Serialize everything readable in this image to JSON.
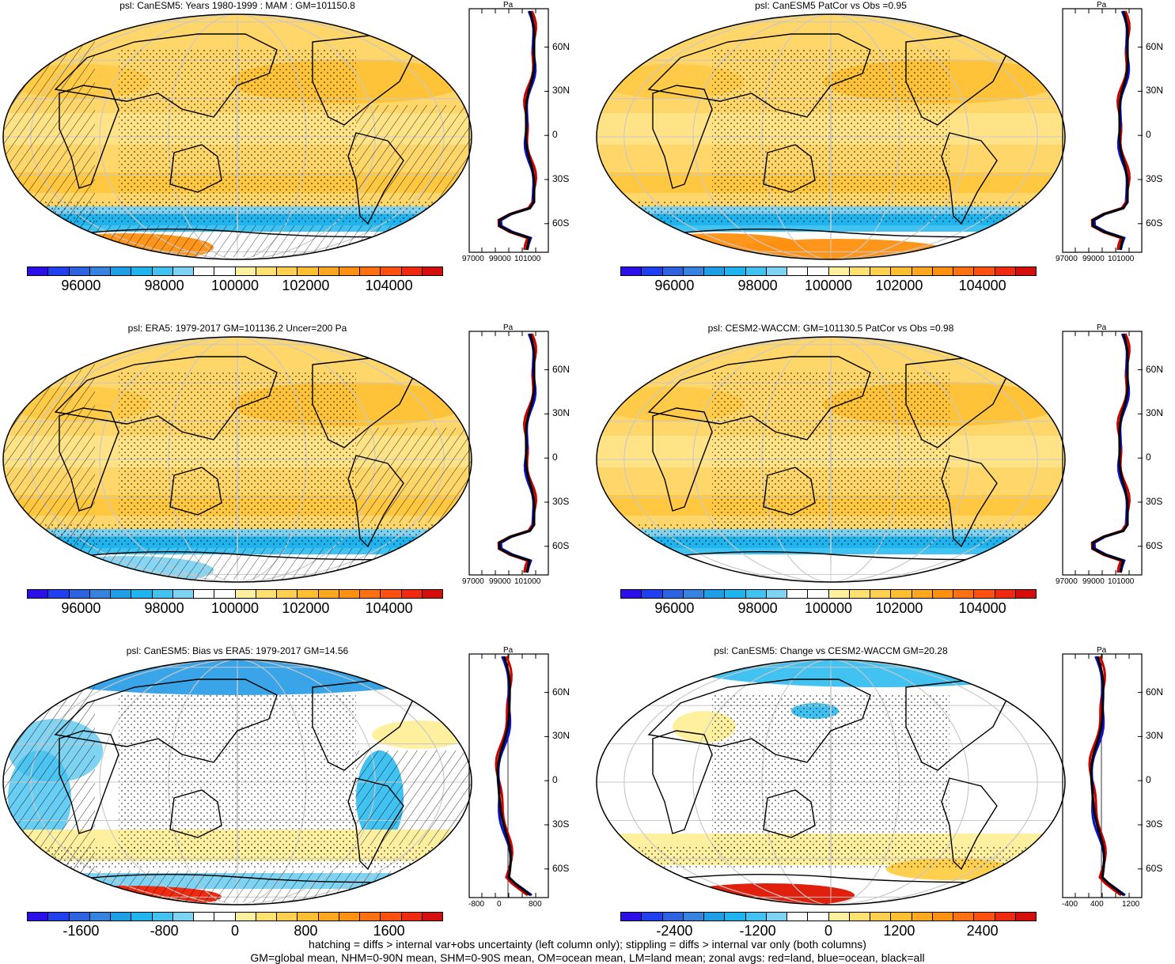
{
  "variable": "psl",
  "panels": [
    {
      "id": "p1",
      "title": "psl: CanESM5: Years 1980-1999 : MAM : GM=101150.8",
      "colorbar_ticks": [
        "96000",
        "98000",
        "100000",
        "102000",
        "104000"
      ],
      "zonal_lat_labels": [
        "60N",
        "30N",
        "0",
        "30S",
        "60S"
      ],
      "zonal_unit": "Pa",
      "zonal_x_ticks": [
        "97000",
        "99000",
        "101000"
      ]
    },
    {
      "id": "p2",
      "title": "psl: CanESM5 PatCor vs Obs =0.95",
      "colorbar_ticks": [
        "96000",
        "98000",
        "100000",
        "102000",
        "104000"
      ],
      "zonal_lat_labels": [
        "60N",
        "30N",
        "0",
        "30S",
        "60S"
      ],
      "zonal_unit": "Pa",
      "zonal_x_ticks": [
        "97000",
        "99000",
        "101000"
      ]
    },
    {
      "id": "p3",
      "title": "psl: ERA5: 1979-2017 GM=101136.2 Uncer=200 Pa",
      "colorbar_ticks": [
        "96000",
        "98000",
        "100000",
        "102000",
        "104000"
      ],
      "zonal_lat_labels": [
        "60N",
        "30N",
        "0",
        "30S",
        "60S"
      ],
      "zonal_unit": "Pa",
      "zonal_x_ticks": [
        "97000",
        "99000",
        "101000"
      ]
    },
    {
      "id": "p4",
      "title": "psl: CESM2-WACCM: GM=101130.5 PatCor vs Obs =0.98",
      "colorbar_ticks": [
        "96000",
        "98000",
        "100000",
        "102000",
        "104000"
      ],
      "zonal_lat_labels": [
        "60N",
        "30N",
        "0",
        "30S",
        "60S"
      ],
      "zonal_unit": "Pa",
      "zonal_x_ticks": [
        "97000",
        "99000",
        "101000"
      ]
    },
    {
      "id": "p5",
      "title": "psl: CanESM5: Bias vs ERA5: 1979-2017 GM=14.56",
      "colorbar_ticks": [
        "-1600",
        "-800",
        "0",
        "800",
        "1600"
      ],
      "zonal_lat_labels": [
        "60N",
        "30N",
        "0",
        "30S",
        "60S"
      ],
      "zonal_unit": "Pa",
      "zonal_x_ticks": [
        "-800",
        "0",
        "800"
      ]
    },
    {
      "id": "p6",
      "title": "psl: CanESM5: Change vs CESM2-WACCM GM=20.28",
      "colorbar_ticks": [
        "-2400",
        "-1200",
        "0",
        "1200",
        "2400"
      ],
      "zonal_lat_labels": [
        "60N",
        "30N",
        "0",
        "30S",
        "60S"
      ],
      "zonal_unit": "Pa",
      "zonal_x_ticks": [
        "-400",
        "400",
        "1200"
      ]
    }
  ],
  "colors": {
    "abs_scale": [
      "#2a0fe8",
      "#1f3ff0",
      "#2d63e0",
      "#3784e0",
      "#1f9ee8",
      "#1fb4ee",
      "#42c2f0",
      "#7fd3f2",
      "#ffffff",
      "#ffffff",
      "#fff0a0",
      "#ffe070",
      "#ffd050",
      "#ffbf30",
      "#ffa81f",
      "#ff9010",
      "#ff7010",
      "#ff5010",
      "#f02a10",
      "#d60d0d"
    ],
    "diff_scale": [
      "#2a0fe8",
      "#1f3ff0",
      "#2d63e0",
      "#3784e0",
      "#1f9ee8",
      "#1fb4ee",
      "#42c2f0",
      "#7fd3f2",
      "#ffffff",
      "#ffffff",
      "#fff0a0",
      "#ffe070",
      "#ffd050",
      "#ffbf30",
      "#ffa81f",
      "#ff9010",
      "#ff7010",
      "#ff5010",
      "#f02a10",
      "#d60d0d"
    ],
    "land_line": "#d00000",
    "ocean_line": "#1010d0",
    "all_line": "#000000"
  },
  "footer": {
    "line1": "hatching = diffs > internal var+obs uncertainty (left column only); stippling = diffs > internal var only (both columns)",
    "line2": "GM=global mean, NHM=0-90N mean, SHM=0-90S mean, OM=ocean mean, LM=land mean; zonal avgs: red=land, blue=ocean, black=all"
  }
}
